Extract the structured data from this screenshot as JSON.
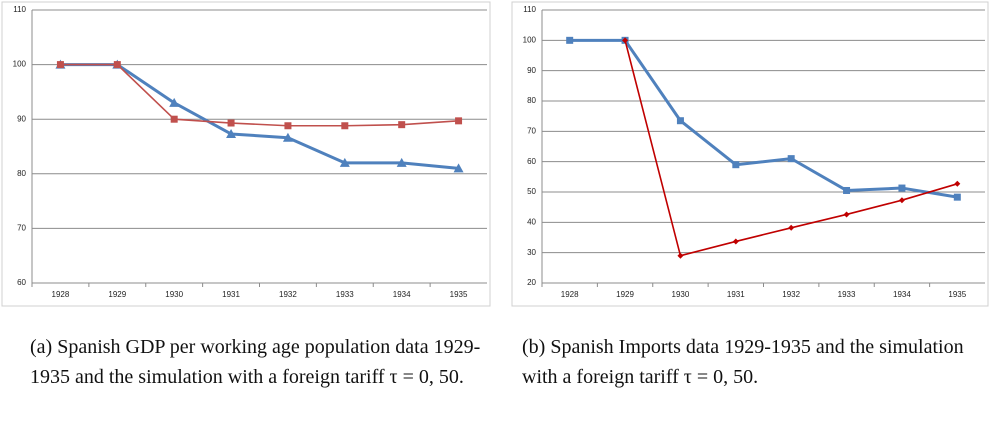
{
  "chart_data": [
    {
      "type": "line",
      "categories": [
        "1928",
        "1929",
        "1930",
        "1931",
        "1932",
        "1933",
        "1934",
        "1935"
      ],
      "series": [
        {
          "color": "#4f81bd",
          "marker": "triangle",
          "values": [
            100,
            100,
            93,
            87.3,
            86.6,
            82,
            82,
            81
          ]
        },
        {
          "color": "#c0504d",
          "marker": "square",
          "values": [
            100,
            100,
            90,
            89.3,
            88.8,
            88.8,
            89,
            89.7
          ]
        }
      ],
      "ylim": [
        60,
        110
      ],
      "yticks": [
        60,
        70,
        80,
        90,
        100,
        110
      ],
      "grid": true,
      "caption": "(a) Spanish GDP per working age population data 1929-1935 and the simulation with a foreign tariff τ = 0, 50."
    },
    {
      "type": "line",
      "categories": [
        "1928",
        "1929",
        "1930",
        "1931",
        "1932",
        "1933",
        "1934",
        "1935"
      ],
      "series": [
        {
          "color": "#4f81bd",
          "marker": "square",
          "values": [
            100,
            100,
            73.5,
            59,
            61,
            50.5,
            51.3,
            48.3
          ]
        },
        {
          "color": "#c00000",
          "marker": "diamond",
          "values": [
            null,
            100,
            29,
            33.7,
            38.2,
            42.6,
            47.3,
            52.7
          ]
        }
      ],
      "ylim": [
        20,
        110
      ],
      "yticks": [
        20,
        30,
        40,
        50,
        60,
        70,
        80,
        90,
        100,
        110
      ],
      "grid": true,
      "caption": "(b) Spanish Imports data 1929-1935 and the simulation with a foreign tariff τ = 0, 50."
    }
  ]
}
